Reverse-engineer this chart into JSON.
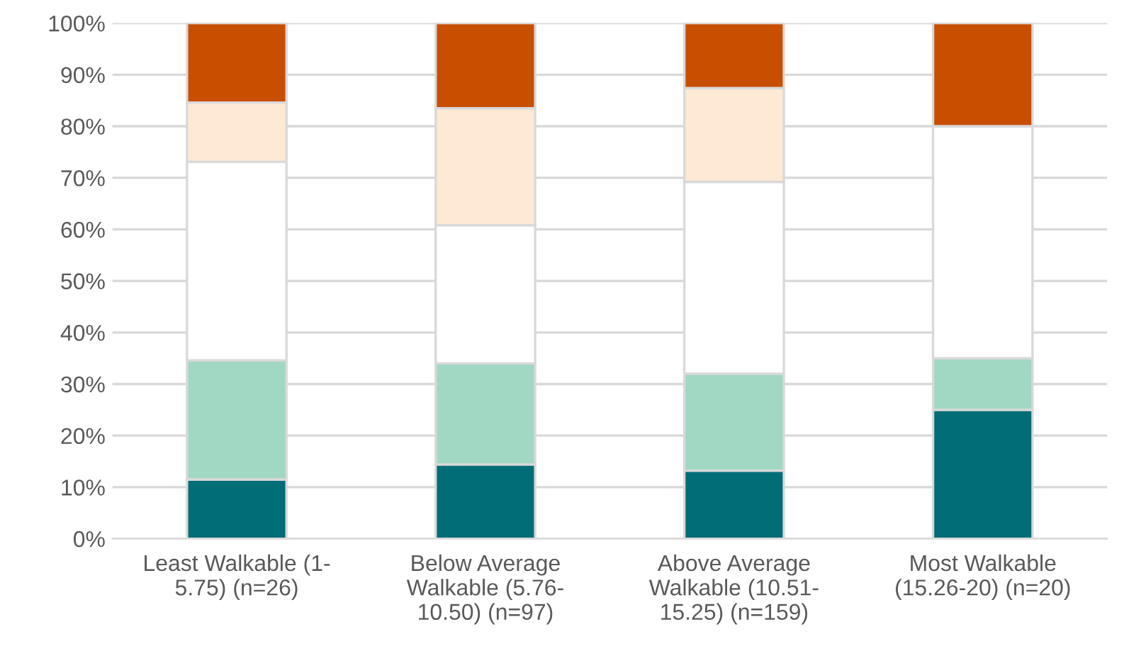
{
  "chart_data": {
    "type": "bar",
    "stacked": true,
    "categories": [
      "Least Walkable (1-\n5.75) (n=26)",
      "Below Average\nWalkable (5.76-\n10.50) (n=97)",
      "Above Average\nWalkable (10.51-\n15.25) (n=159)",
      "Most Walkable\n(15.26-20) (n=20)"
    ],
    "series": [
      {
        "color": "#006d77",
        "values": [
          11.5,
          14.4,
          13.2,
          25
        ]
      },
      {
        "color": "#a0d8c3",
        "values": [
          23.1,
          19.6,
          18.8,
          10
        ]
      },
      {
        "color": "#ffffff",
        "values": [
          38.5,
          26.8,
          37.2,
          45
        ]
      },
      {
        "color": "#fde9d4",
        "values": [
          11.5,
          22.7,
          18.2,
          0
        ]
      },
      {
        "color": "#c84f00",
        "values": [
          15.4,
          16.5,
          12.6,
          20
        ]
      }
    ],
    "ylim": [
      0,
      100
    ],
    "yticks": [
      {
        "value": 0,
        "label": "0%"
      },
      {
        "value": 10,
        "label": "10%"
      },
      {
        "value": 20,
        "label": "20%"
      },
      {
        "value": 30,
        "label": "30%"
      },
      {
        "value": 40,
        "label": "40%"
      },
      {
        "value": 50,
        "label": "50%"
      },
      {
        "value": 60,
        "label": "60%"
      },
      {
        "value": 70,
        "label": "70%"
      },
      {
        "value": 80,
        "label": "80%"
      },
      {
        "value": 90,
        "label": "90%"
      },
      {
        "value": 100,
        "label": "100%"
      }
    ],
    "grid": "y"
  }
}
